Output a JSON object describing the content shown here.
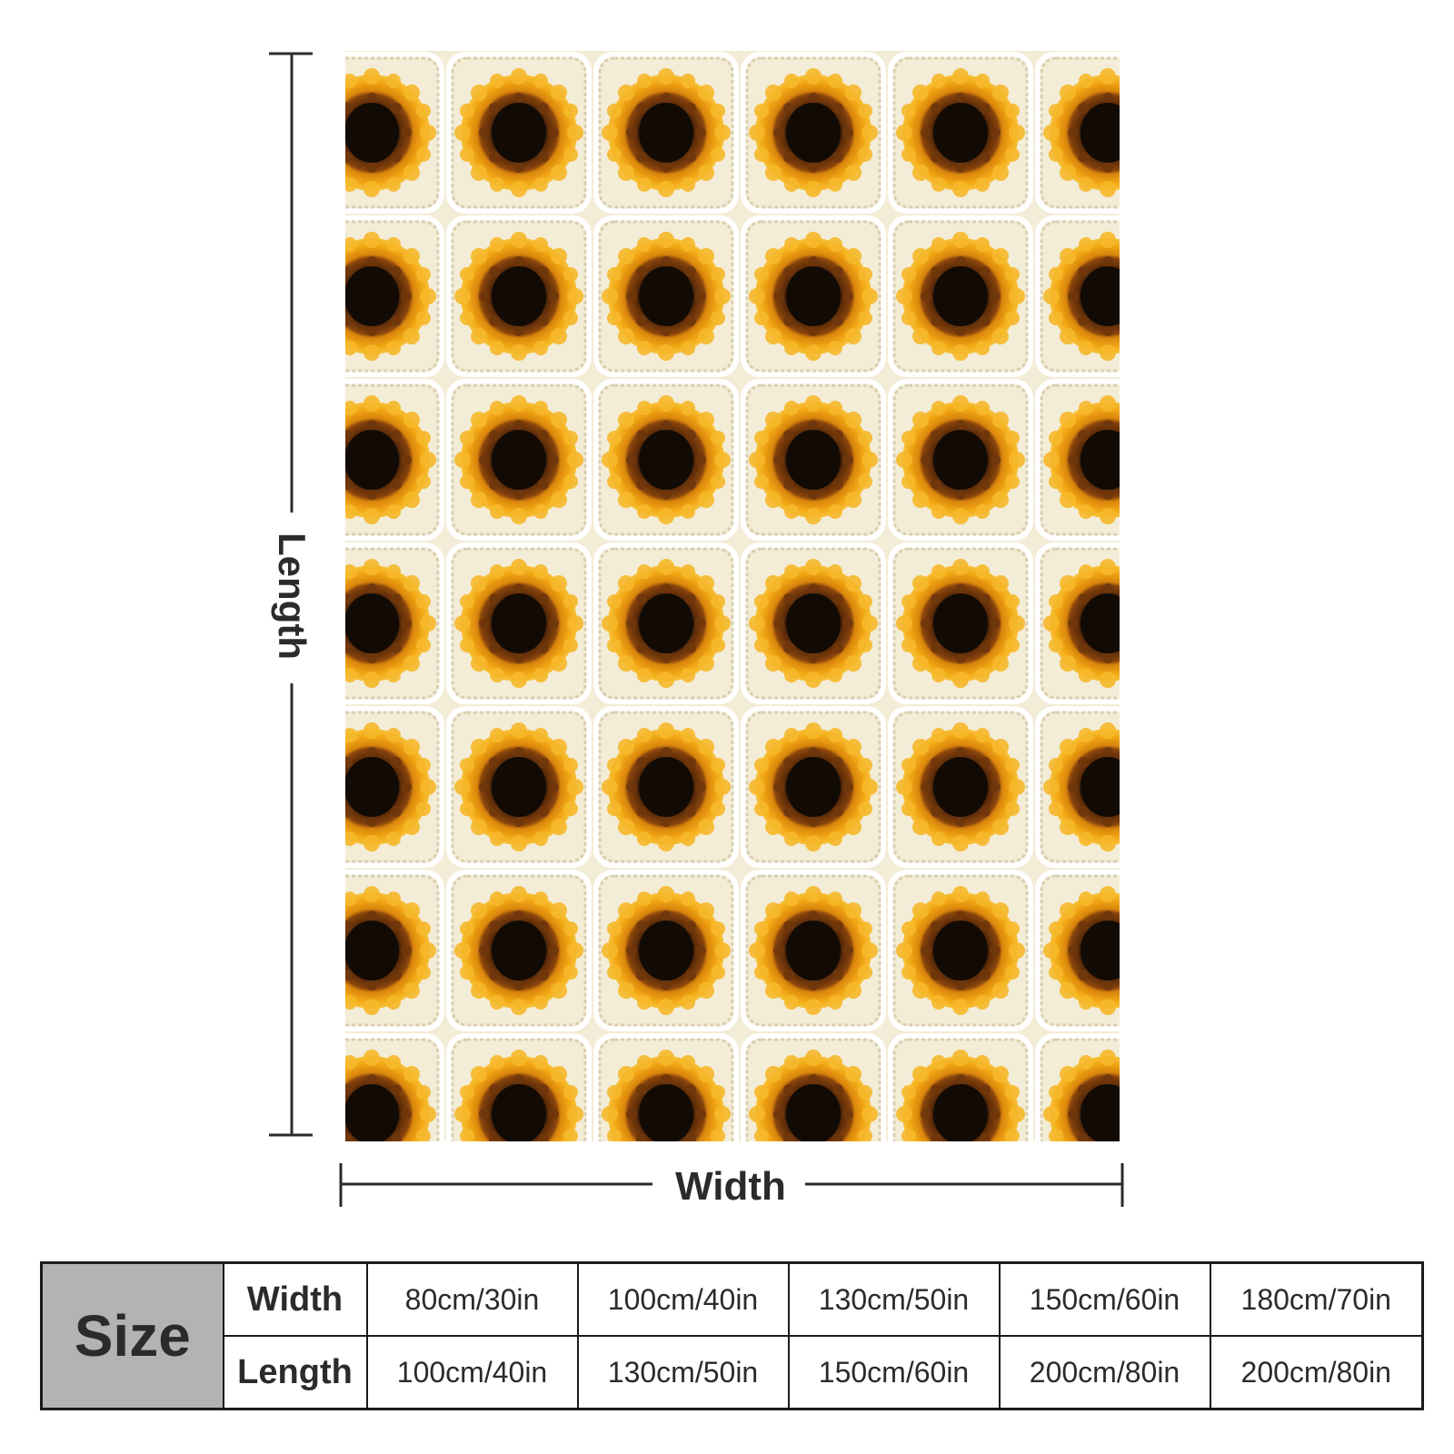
{
  "dimension_labels": {
    "length": "Length",
    "width": "Width"
  },
  "product_image": {
    "description_icon": "sunflower-crochet-pattern",
    "colors": {
      "background": "#f3ecd6",
      "petal_outer": "#f2a814",
      "petal_mid": "#d9850c",
      "ring": "#7a3d0b",
      "center": "#120b05",
      "stitch": "#e2d9be"
    }
  },
  "size_table": {
    "header": "Size",
    "rows": [
      {
        "label": "Width",
        "values": [
          "80cm/30in",
          "100cm/40in",
          "130cm/50in",
          "150cm/60in",
          "180cm/70in"
        ]
      },
      {
        "label": "Length",
        "values": [
          "100cm/40in",
          "130cm/50in",
          "150cm/60in",
          "200cm/80in",
          "200cm/80in"
        ]
      }
    ]
  }
}
